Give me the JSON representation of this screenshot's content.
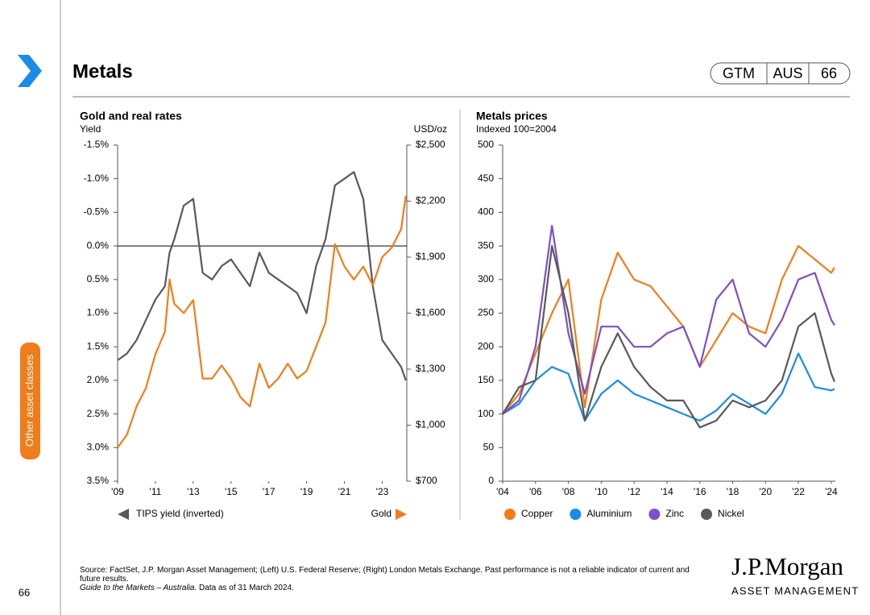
{
  "header": {
    "title": "Metals",
    "badges": [
      "GTM",
      "AUS",
      "66"
    ]
  },
  "sidebar": {
    "section": "Other asset classes",
    "page": "66"
  },
  "chart_data": [
    {
      "type": "line",
      "title": "Gold and real rates",
      "y_label": "Yield",
      "y2_label": "USD/oz",
      "x": [
        2009,
        2009.5,
        2010,
        2010.5,
        2011,
        2011.5,
        2011.75,
        2012,
        2012.5,
        2013,
        2013.5,
        2014,
        2014.5,
        2015,
        2015.5,
        2016,
        2016.5,
        2017,
        2017.5,
        2018,
        2018.5,
        2019,
        2019.5,
        2020,
        2020.5,
        2021,
        2021.5,
        2022,
        2022.5,
        2023,
        2023.5,
        2024,
        2024.25
      ],
      "xlim": [
        2009,
        2024.3
      ],
      "xticks": [
        {
          "value": 2009,
          "label": "'09"
        },
        {
          "value": 2011,
          "label": "'11"
        },
        {
          "value": 2013,
          "label": "'13"
        },
        {
          "value": 2015,
          "label": "'15"
        },
        {
          "value": 2017,
          "label": "'17"
        },
        {
          "value": 2019,
          "label": "'19"
        },
        {
          "value": 2021,
          "label": "'21"
        },
        {
          "value": 2023,
          "label": "'23"
        }
      ],
      "ylim": [
        -1.5,
        3.5
      ],
      "y_inverted": true,
      "yticks": [
        {
          "value": -1.5,
          "label": "-1.5%"
        },
        {
          "value": -1.0,
          "label": "-1.0%"
        },
        {
          "value": -0.5,
          "label": "-0.5%"
        },
        {
          "value": 0,
          "label": "0.0%"
        },
        {
          "value": 0.5,
          "label": "0.5%"
        },
        {
          "value": 1.0,
          "label": "1.0%"
        },
        {
          "value": 1.5,
          "label": "1.5%"
        },
        {
          "value": 2.0,
          "label": "2.0%"
        },
        {
          "value": 2.5,
          "label": "2.5%"
        },
        {
          "value": 3.0,
          "label": "3.0%"
        },
        {
          "value": 3.5,
          "label": "3.5%"
        }
      ],
      "y2lim": [
        700,
        2500
      ],
      "y2ticks": [
        {
          "value": 700,
          "label": "$700"
        },
        {
          "value": 1000,
          "label": "$1,000"
        },
        {
          "value": 1300,
          "label": "$1,300"
        },
        {
          "value": 1600,
          "label": "$1,600"
        },
        {
          "value": 1900,
          "label": "$1,900"
        },
        {
          "value": 2200,
          "label": "$2,200"
        },
        {
          "value": 2500,
          "label": "$2,500"
        }
      ],
      "zero_line": true,
      "series": [
        {
          "name": "TIPS yield (inverted)",
          "color": "#595959",
          "axis": "y",
          "values": [
            1.7,
            1.6,
            1.4,
            1.1,
            0.8,
            0.6,
            0.1,
            -0.1,
            -0.6,
            -0.7,
            0.4,
            0.5,
            0.3,
            0.2,
            0.4,
            0.6,
            0.1,
            0.4,
            0.5,
            0.6,
            0.7,
            1.0,
            0.3,
            -0.1,
            -0.9,
            -1.0,
            -1.1,
            -0.7,
            0.6,
            1.4,
            1.6,
            1.8,
            2.0
          ]
        },
        {
          "name": "Gold",
          "color": "#f07d1a",
          "axis": "y2",
          "values": [
            880,
            950,
            1100,
            1200,
            1380,
            1500,
            1780,
            1650,
            1600,
            1670,
            1250,
            1250,
            1320,
            1250,
            1150,
            1100,
            1330,
            1200,
            1250,
            1330,
            1250,
            1290,
            1420,
            1550,
            1970,
            1850,
            1780,
            1850,
            1750,
            1900,
            1950,
            2050,
            2230
          ]
        }
      ]
    },
    {
      "type": "line",
      "title": "Metals prices",
      "y_label": "Indexed 100=2004",
      "x": [
        2004,
        2005,
        2006,
        2007,
        2008,
        2009,
        2010,
        2011,
        2012,
        2013,
        2014,
        2015,
        2016,
        2017,
        2018,
        2019,
        2020,
        2021,
        2022,
        2023,
        2024,
        2024.2
      ],
      "xlim": [
        2004,
        2024.25
      ],
      "xticks": [
        {
          "value": 2004,
          "label": "'04"
        },
        {
          "value": 2006,
          "label": "'06"
        },
        {
          "value": 2008,
          "label": "'08"
        },
        {
          "value": 2010,
          "label": "'10"
        },
        {
          "value": 2012,
          "label": "'12"
        },
        {
          "value": 2014,
          "label": "'14"
        },
        {
          "value": 2016,
          "label": "'16"
        },
        {
          "value": 2018,
          "label": "'18"
        },
        {
          "value": 2020,
          "label": "'20"
        },
        {
          "value": 2022,
          "label": "'22"
        },
        {
          "value": 2024,
          "label": "'24"
        }
      ],
      "ylim": [
        0,
        500
      ],
      "yticks": [
        0,
        50,
        100,
        150,
        200,
        250,
        300,
        350,
        400,
        450,
        500
      ],
      "series": [
        {
          "name": "Copper",
          "color": "#f07d1a",
          "values": [
            100,
            130,
            190,
            250,
            300,
            110,
            270,
            340,
            300,
            290,
            260,
            230,
            170,
            210,
            250,
            230,
            220,
            300,
            350,
            330,
            310,
            318
          ]
        },
        {
          "name": "Aluminium",
          "color": "#1a8ce6",
          "values": [
            100,
            115,
            150,
            170,
            160,
            90,
            130,
            150,
            130,
            120,
            110,
            100,
            90,
            105,
            130,
            115,
            100,
            130,
            190,
            140,
            135,
            137
          ]
        },
        {
          "name": "Zinc",
          "color": "#7d4fc8",
          "values": [
            100,
            120,
            200,
            380,
            220,
            130,
            230,
            230,
            200,
            200,
            220,
            230,
            170,
            270,
            300,
            220,
            200,
            240,
            300,
            310,
            240,
            232
          ]
        },
        {
          "name": "Nickel",
          "color": "#595959",
          "values": [
            100,
            140,
            150,
            350,
            250,
            90,
            170,
            220,
            170,
            140,
            120,
            120,
            80,
            90,
            120,
            110,
            120,
            150,
            230,
            250,
            160,
            148
          ]
        }
      ]
    }
  ],
  "footer": {
    "source": "Source: FactSet, J.P. Morgan Asset Management; (Left) U.S. Federal Reserve; (Right) London Metals Exchange. Past performance is not a reliable indicator of current and future results.",
    "guide": "Guide to the Markets – Australia.",
    "date": "Data as of 31 March 2024.",
    "logo": "J.P.Morgan",
    "logo_sub": "ASSET MANAGEMENT"
  }
}
